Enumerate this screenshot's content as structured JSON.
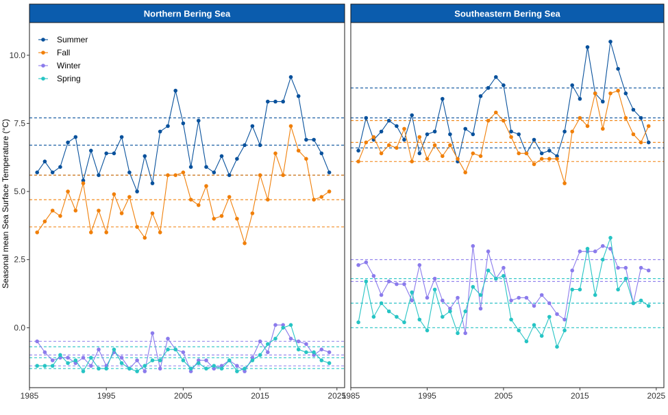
{
  "chart_data": {
    "type": "line",
    "ylabel": "Seasonal mean Sea Surface Temperature (°C)",
    "xlabel": "",
    "xlim": [
      1985,
      2026
    ],
    "ylim": [
      -2.2,
      11.2
    ],
    "x_ticks": [
      1985,
      1995,
      2005,
      2015,
      2025
    ],
    "y_ticks": [
      0.0,
      2.5,
      5.0,
      7.5,
      10.0
    ],
    "y_tick_labels": [
      "0.0",
      "2.5",
      "5.0",
      "7.5",
      "10.0"
    ],
    "legend": {
      "placement": "top-left",
      "entries": [
        "Summer",
        "Fall",
        "Winter",
        "Spring"
      ]
    },
    "colors": {
      "Summer": "#08519c",
      "Fall": "#f07f09",
      "Winter": "#8b7bec",
      "Spring": "#26c4c4"
    },
    "strip_color": "#0b5cad",
    "panels": [
      {
        "title": "Northern Bering Sea",
        "x_start": 1986,
        "series": [
          {
            "name": "Summer",
            "values": [
              5.7,
              6.1,
              5.7,
              5.9,
              6.8,
              7.0,
              5.4,
              6.5,
              5.6,
              6.4,
              6.4,
              7.0,
              5.7,
              5.0,
              6.3,
              5.3,
              7.2,
              7.4,
              8.7,
              7.5,
              5.9,
              7.6,
              5.9,
              5.7,
              6.3,
              5.6,
              6.2,
              6.7,
              7.4,
              6.7,
              8.3,
              8.3,
              8.3,
              9.2,
              8.5,
              6.9,
              6.9,
              6.4,
              5.7
            ]
          },
          {
            "name": "Fall",
            "values": [
              3.5,
              3.9,
              4.3,
              4.1,
              5.0,
              4.3,
              5.3,
              3.5,
              4.3,
              3.5,
              4.9,
              4.2,
              4.8,
              3.7,
              3.3,
              4.2,
              3.5,
              5.6,
              5.6,
              5.7,
              4.7,
              4.5,
              5.2,
              4.0,
              4.1,
              4.8,
              4.0,
              3.1,
              4.2,
              5.6,
              4.7,
              6.4,
              5.6,
              7.4,
              6.5,
              6.2,
              4.7,
              4.8,
              5.0
            ]
          },
          {
            "name": "Winter",
            "values": [
              -0.5,
              -0.9,
              -1.2,
              -1.1,
              -1.1,
              -1.3,
              -1.1,
              -1.4,
              -0.8,
              -1.4,
              -0.9,
              -1.1,
              -1.5,
              -1.2,
              -1.6,
              -0.2,
              -1.5,
              -0.4,
              -0.8,
              -0.9,
              -1.6,
              -1.2,
              -1.2,
              -1.5,
              -1.4,
              -1.2,
              -1.4,
              -1.6,
              -1.1,
              -0.5,
              -0.9,
              0.1,
              0.1,
              -0.4,
              -0.5,
              -0.6,
              -1.0,
              -0.8,
              -0.9
            ]
          },
          {
            "name": "Spring",
            "values": [
              -1.4,
              -1.4,
              -1.4,
              -1.0,
              -1.3,
              -1.2,
              -1.6,
              -1.1,
              -1.5,
              -1.5,
              -0.8,
              -1.3,
              -1.5,
              -1.6,
              -1.4,
              -1.2,
              -1.2,
              -0.8,
              -0.8,
              -1.2,
              -1.5,
              -1.3,
              -1.5,
              -1.4,
              -1.5,
              -1.2,
              -1.6,
              -1.5,
              -1.2,
              -1.0,
              -0.6,
              -0.4,
              0.0,
              0.1,
              -0.8,
              -0.9,
              -0.9,
              -1.2,
              -1.3
            ]
          }
        ],
        "reference_lines": [
          {
            "series": "Summer",
            "y": 7.7
          },
          {
            "series": "Summer",
            "y": 6.7
          },
          {
            "series": "Summer",
            "y": 5.6
          },
          {
            "series": "Fall",
            "y": 5.6
          },
          {
            "series": "Fall",
            "y": 4.7
          },
          {
            "series": "Fall",
            "y": 3.7
          },
          {
            "series": "Winter",
            "y": -0.5
          },
          {
            "series": "Winter",
            "y": -1.0
          },
          {
            "series": "Winter",
            "y": -1.4
          },
          {
            "series": "Spring",
            "y": -0.7
          },
          {
            "series": "Spring",
            "y": -1.1
          },
          {
            "series": "Spring",
            "y": -1.5
          }
        ]
      },
      {
        "title": "Southeastern Bering Sea",
        "x_start": 1986,
        "series": [
          {
            "name": "Summer",
            "values": [
              6.5,
              7.7,
              6.9,
              7.2,
              7.6,
              7.4,
              6.9,
              7.8,
              6.4,
              7.1,
              7.2,
              8.4,
              7.1,
              6.1,
              7.3,
              7.1,
              8.5,
              8.8,
              9.2,
              8.9,
              7.2,
              7.1,
              6.4,
              6.9,
              6.4,
              6.5,
              6.3,
              7.2,
              8.9,
              8.4,
              10.3,
              8.6,
              8.3,
              10.5,
              9.5,
              8.6,
              8.0,
              7.7,
              6.8
            ]
          },
          {
            "name": "Fall",
            "values": [
              6.1,
              6.8,
              7.0,
              6.4,
              6.7,
              6.6,
              7.3,
              6.1,
              7.0,
              6.2,
              6.7,
              6.3,
              6.7,
              6.2,
              5.7,
              6.4,
              6.3,
              7.6,
              7.9,
              7.6,
              7.0,
              6.4,
              6.4,
              6.0,
              6.2,
              6.2,
              6.2,
              5.3,
              7.2,
              7.7,
              7.4,
              8.6,
              7.3,
              8.6,
              8.7,
              7.7,
              7.1,
              6.8,
              7.4
            ]
          },
          {
            "name": "Winter",
            "values": [
              2.3,
              2.4,
              1.9,
              1.2,
              1.7,
              1.6,
              1.6,
              1.0,
              2.3,
              1.1,
              1.8,
              1.0,
              0.7,
              1.1,
              -0.2,
              3.0,
              0.7,
              2.8,
              1.8,
              2.2,
              1.0,
              1.1,
              1.1,
              0.8,
              1.2,
              0.9,
              0.5,
              0.3,
              2.1,
              2.8,
              2.8,
              2.8,
              3.0,
              2.9,
              2.2,
              2.2,
              0.9,
              2.2,
              2.1
            ]
          },
          {
            "name": "Spring",
            "values": [
              0.2,
              1.7,
              0.4,
              0.9,
              0.6,
              0.4,
              0.2,
              1.3,
              0.3,
              -0.1,
              1.4,
              0.4,
              0.6,
              -0.2,
              0.6,
              1.5,
              1.2,
              2.1,
              1.8,
              1.9,
              0.3,
              -0.1,
              -0.5,
              0.1,
              -0.3,
              0.4,
              -0.7,
              -0.1,
              1.4,
              1.4,
              2.9,
              1.2,
              2.5,
              3.3,
              1.4,
              1.8,
              0.9,
              1.0,
              0.8
            ]
          }
        ],
        "reference_lines": [
          {
            "series": "Summer",
            "y": 8.8
          },
          {
            "series": "Summer",
            "y": 7.7
          },
          {
            "series": "Summer",
            "y": 6.6
          },
          {
            "series": "Fall",
            "y": 7.6
          },
          {
            "series": "Fall",
            "y": 6.8
          },
          {
            "series": "Fall",
            "y": 6.1
          },
          {
            "series": "Winter",
            "y": 2.5
          },
          {
            "series": "Winter",
            "y": 1.7
          },
          {
            "series": "Winter",
            "y": 0.9
          },
          {
            "series": "Spring",
            "y": 1.8
          },
          {
            "series": "Spring",
            "y": 0.9
          },
          {
            "series": "Spring",
            "y": 0.0
          }
        ]
      }
    ]
  }
}
